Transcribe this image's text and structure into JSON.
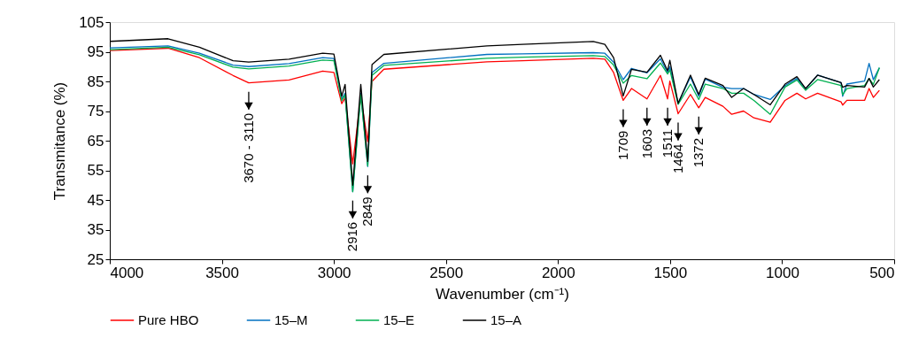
{
  "chart_data": {
    "type": "line",
    "xlabel": "Wavenumber (cm⁻¹)",
    "ylabel": "Transmitance (%)",
    "x": [
      4000,
      3740,
      3600,
      3450,
      3380,
      3200,
      3050,
      3000,
      2965,
      2950,
      2916,
      2880,
      2849,
      2830,
      2777,
      2317,
      2159,
      1843,
      1791,
      1752,
      1709,
      1672,
      1603,
      1543,
      1511,
      1501,
      1464,
      1409,
      1372,
      1343,
      1264,
      1225,
      1172,
      1126,
      1053,
      987,
      934,
      895,
      842,
      737,
      730,
      711,
      632,
      612,
      593,
      566
    ],
    "series": [
      {
        "name": "Pure HBO",
        "color": "#ff0000",
        "values": [
          95.4,
          96.2,
          93,
          87,
          84.5,
          85.5,
          88.5,
          88,
          77.5,
          79.5,
          57.2,
          79.6,
          64.7,
          85,
          89.1,
          91.6,
          92,
          92.8,
          92.5,
          88,
          78.6,
          82.6,
          79.1,
          87,
          79.1,
          85.1,
          74.1,
          80.6,
          76.1,
          79.6,
          76.6,
          73.9,
          75,
          72.7,
          71.2,
          78.6,
          81,
          79.1,
          81,
          78.1,
          77,
          78.6,
          78.6,
          82.6,
          79.6,
          82
        ]
      },
      {
        "name": "15–M",
        "color": "#0070c0",
        "values": [
          96.3,
          97,
          94.5,
          90.5,
          90,
          91,
          93,
          92.7,
          79,
          81,
          47.8,
          81,
          56.3,
          88,
          91.1,
          94.1,
          94.3,
          94.7,
          94.5,
          91.5,
          85.6,
          89.4,
          87.9,
          92.6,
          88,
          90,
          77.6,
          86.5,
          80,
          85.8,
          83,
          82.6,
          82.6,
          80.6,
          78.9,
          83.6,
          86,
          82.5,
          87.1,
          84.6,
          80,
          84.1,
          85.1,
          91.1,
          85.6,
          89.6
        ]
      },
      {
        "name": "15–E",
        "color": "#00b050",
        "values": [
          95.7,
          96.5,
          94,
          89.8,
          89.2,
          90.2,
          92.2,
          92,
          78.5,
          80.5,
          47.8,
          80.5,
          56.5,
          87,
          90.4,
          92.8,
          93.2,
          93.7,
          93.4,
          90.5,
          84.4,
          87,
          85.9,
          91.2,
          87.5,
          88.9,
          77.3,
          84.1,
          78.9,
          84.1,
          82.6,
          81,
          81,
          78.6,
          73.9,
          83.1,
          85.5,
          82,
          85.6,
          83.6,
          80.5,
          82.6,
          83.6,
          86,
          84,
          89.6
        ]
      },
      {
        "name": "15–A",
        "color": "#000000",
        "values": [
          98.5,
          99.4,
          96.5,
          92.0,
          91.5,
          92.5,
          94.5,
          94.2,
          80,
          84,
          50,
          84,
          58,
          90.7,
          94.1,
          97.0,
          97.5,
          98.5,
          97.5,
          93,
          80.1,
          89.1,
          88.1,
          93.8,
          88.6,
          92.1,
          77.6,
          87.1,
          80.6,
          86.1,
          83.6,
          79.6,
          82.6,
          80.6,
          77.1,
          84.1,
          86.6,
          82.6,
          87.1,
          84.6,
          83,
          83.6,
          83.1,
          86,
          83.1,
          85.6
        ]
      }
    ],
    "xlim": [
      4000,
      500
    ],
    "xticks": [
      4000,
      3500,
      3000,
      2500,
      2000,
      1500,
      1000,
      500
    ],
    "ylim": [
      25,
      105
    ],
    "yticks": [
      25,
      35,
      45,
      55,
      65,
      75,
      85,
      95,
      105
    ],
    "grid": false,
    "legend": "bottom",
    "marker": "none",
    "line_style": "solid",
    "annotations": [
      {
        "text": "3670 - 3110",
        "x": 3380,
        "y": 84.5
      },
      {
        "text": "2916",
        "x": 2916,
        "y": 47.8
      },
      {
        "text": "2849",
        "x": 2849,
        "y": 56.3
      },
      {
        "text": "1709",
        "x": 1709,
        "y": 78.6
      },
      {
        "text": "1603",
        "x": 1603,
        "y": 79.1
      },
      {
        "text": "1511",
        "x": 1511,
        "y": 79.1
      },
      {
        "text": "1464",
        "x": 1464,
        "y": 74.1
      },
      {
        "text": "1372",
        "x": 1372,
        "y": 76.1
      }
    ]
  }
}
